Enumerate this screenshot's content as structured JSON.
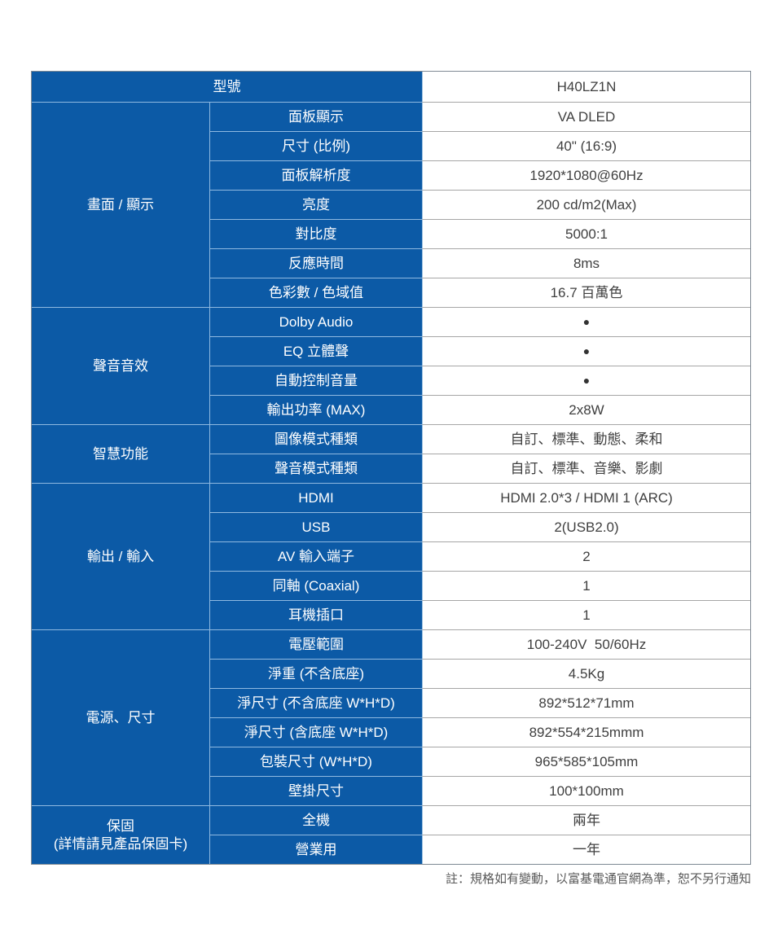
{
  "table": {
    "header": {
      "label": "型號",
      "value": "H40LZ1N"
    },
    "groups": [
      {
        "category": "畫面 / 顯示",
        "rows": [
          {
            "label": "面板顯示",
            "value": "VA DLED"
          },
          {
            "label": "尺寸 (比例)",
            "value": "40\" (16:9)"
          },
          {
            "label": "面板解析度",
            "value": "1920*1080@60Hz"
          },
          {
            "label": "亮度",
            "value": "200 cd/m2(Max)"
          },
          {
            "label": "對比度",
            "value": "5000:1"
          },
          {
            "label": "反應時間",
            "value": "8ms"
          },
          {
            "label": "色彩數 / 色域值",
            "value": "16.7 百萬色"
          }
        ]
      },
      {
        "category": "聲音音效",
        "rows": [
          {
            "label": "Dolby Audio",
            "value": "●"
          },
          {
            "label": "EQ 立體聲",
            "value": "●"
          },
          {
            "label": "自動控制音量",
            "value": "●"
          },
          {
            "label": "輸出功率 (MAX)",
            "value": "2x8W"
          }
        ]
      },
      {
        "category": "智慧功能",
        "rows": [
          {
            "label": "圖像模式種類",
            "value": "自訂、標準、動態、柔和"
          },
          {
            "label": "聲音模式種類",
            "value": "自訂、標準、音樂、影劇"
          }
        ]
      },
      {
        "category": "輸出 / 輸入",
        "rows": [
          {
            "label": "HDMI",
            "value": "HDMI 2.0*3 / HDMI 1 (ARC)"
          },
          {
            "label": "USB",
            "value": "2(USB2.0)"
          },
          {
            "label": "AV 輸入端子",
            "value": "2"
          },
          {
            "label": "同軸 (Coaxial)",
            "value": "1"
          },
          {
            "label": "耳機插口",
            "value": "1"
          }
        ]
      },
      {
        "category": "電源、尺寸",
        "rows": [
          {
            "label": "電壓範圍",
            "value": "100-240V  50/60Hz"
          },
          {
            "label": "淨重 (不含底座)",
            "value": "4.5Kg"
          },
          {
            "label": "淨尺寸 (不含底座 W*H*D)",
            "value": "892*512*71mm"
          },
          {
            "label": "淨尺寸 (含底座 W*H*D)",
            "value": "892*554*215mmm"
          },
          {
            "label": "包裝尺寸 (W*H*D)",
            "value": "965*585*105mm"
          },
          {
            "label": "壁掛尺寸",
            "value": "100*100mm"
          }
        ]
      },
      {
        "category": "保固",
        "category_sub": "(詳情請見產品保固卡)",
        "rows": [
          {
            "label": "全機",
            "value": "兩年"
          },
          {
            "label": "營業用",
            "value": "一年"
          }
        ]
      }
    ],
    "footer_note": "註：規格如有變動，以富基電通官網為準，恕不另行通知",
    "colors": {
      "cell_blue": "#0c5aa6",
      "blue_divider": "#8fb9e1",
      "gray_divider": "#a6a6a6",
      "outer_border": "#7f8a94",
      "value_text": "#3f3f3f",
      "bullet": "#333333",
      "note_text": "#595959"
    }
  }
}
